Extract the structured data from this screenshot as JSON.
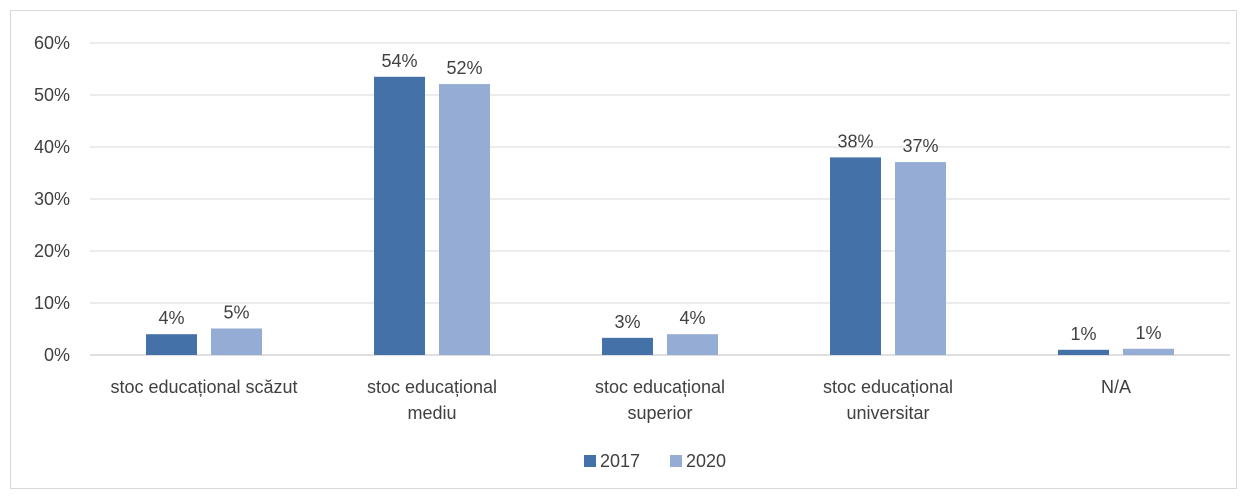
{
  "chart_data": {
    "type": "bar",
    "categories": [
      [
        "stoc educațional scăzut"
      ],
      [
        "stoc educațional",
        "mediu"
      ],
      [
        "stoc educațional",
        "superior"
      ],
      [
        "stoc educațional",
        "universitar"
      ],
      [
        "N/A"
      ]
    ],
    "series": [
      {
        "name": "2017",
        "color": "#4472a8",
        "values": [
          4,
          53.5,
          3.3,
          38,
          1
        ],
        "labels": [
          "4%",
          "54%",
          "3%",
          "38%",
          "1%"
        ]
      },
      {
        "name": "2020",
        "color": "#95add4",
        "values": [
          5.1,
          52.1,
          4,
          37.1,
          1.2
        ],
        "labels": [
          "5%",
          "52%",
          "4%",
          "37%",
          "1%"
        ]
      }
    ],
    "ylim": [
      0,
      60
    ],
    "yticks": [
      0,
      10,
      20,
      30,
      40,
      50,
      60
    ],
    "ytick_labels": [
      "0%",
      "10%",
      "20%",
      "30%",
      "40%",
      "50%",
      "60%"
    ],
    "grid": true,
    "legend_position": "bottom",
    "gridline_color": "#d9d9d9",
    "axis_color": "#bfbfbf"
  }
}
